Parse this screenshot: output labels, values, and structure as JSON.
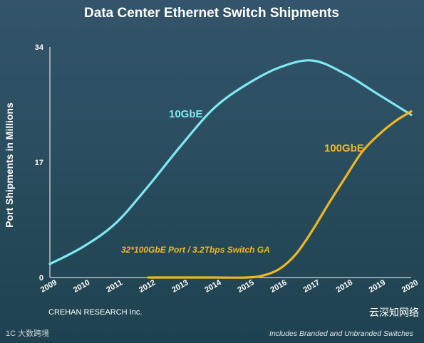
{
  "title": "Data Center Ethernet Switch Shipments",
  "footer_left": "CREHAN RESEARCH Inc.",
  "footer_right": "Includes Branded and Unbranded Switches",
  "watermark_left": "1C 大数跨境",
  "watermark_right": "云深知网络",
  "chart_data": {
    "type": "line",
    "ylabel": "Port Shipments in Millions",
    "xlabel": "",
    "xlim": [
      2009,
      2020
    ],
    "ylim": [
      0,
      34
    ],
    "x_ticks": [
      "2009",
      "2010",
      "2011",
      "2012",
      "2013",
      "2014",
      "2015",
      "2016",
      "2017",
      "2018",
      "2019",
      "2020"
    ],
    "y_ticks": [
      "0",
      "17",
      "34"
    ],
    "grid": false,
    "series": [
      {
        "name": "10GbE",
        "color": "#7fe8f0",
        "x": [
          2009,
          2010,
          2011,
          2012,
          2013,
          2014,
          2015,
          2016,
          2017,
          2018,
          2019,
          2020
        ],
        "y": [
          2.0,
          4.5,
          8.0,
          13.5,
          19.5,
          25.0,
          28.5,
          31.0,
          32.0,
          30.0,
          27.0,
          24.0
        ]
      },
      {
        "name": "100GbE",
        "color": "#f0b722",
        "x": [
          2012,
          2013,
          2014,
          2015,
          2015.5,
          2016,
          2016.5,
          2017,
          2017.5,
          2018,
          2018.5,
          2019,
          2019.5,
          2020
        ],
        "y": [
          0.0,
          0.0,
          0.0,
          0.0,
          0.3,
          1.3,
          3.5,
          7.0,
          11.0,
          14.8,
          18.5,
          21.0,
          23.0,
          24.5
        ]
      }
    ],
    "annotations": [
      {
        "text": "32*100GbE Port / 3.2Tbps Switch GA",
        "color": "#f0b722"
      }
    ]
  }
}
